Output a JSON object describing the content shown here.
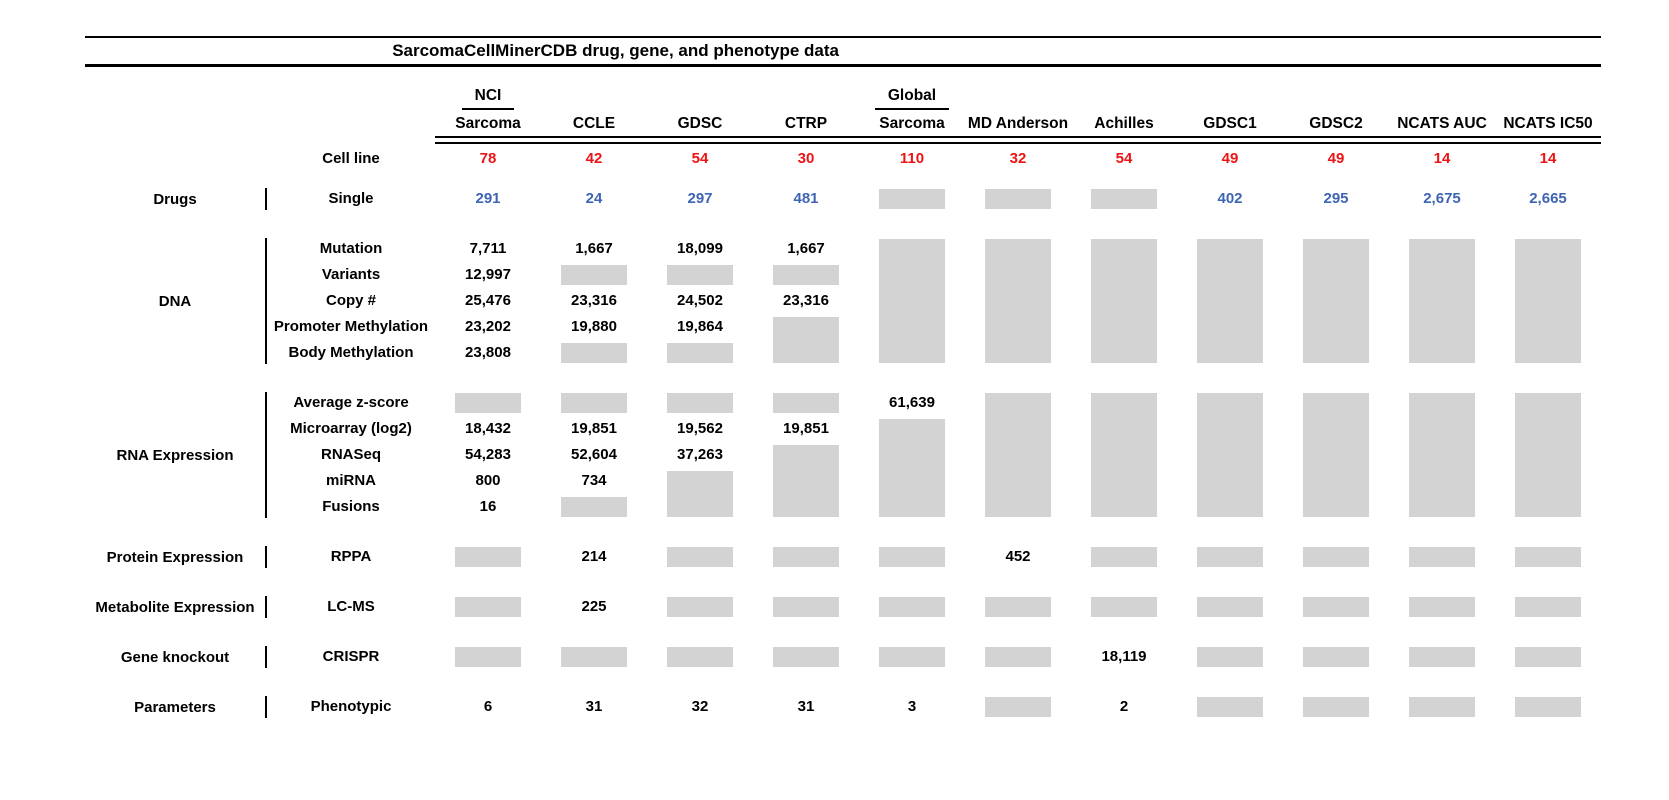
{
  "colors": {
    "count_red": "#EC1414",
    "drug_blue": "#3E64B5",
    "no_data_gray": "#D3D3D3",
    "rule_black": "#000000"
  },
  "chart_data": {
    "type": "table",
    "title": "SarcomaCellMinerCDB drug, gene, and phenotype data",
    "columns": [
      {
        "top": "NCI",
        "label": "Sarcoma"
      },
      {
        "top": "",
        "label": "CCLE"
      },
      {
        "top": "",
        "label": "GDSC"
      },
      {
        "top": "",
        "label": "CTRP"
      },
      {
        "top": "Global",
        "label": "Sarcoma"
      },
      {
        "top": "",
        "label": "MD Anderson"
      },
      {
        "top": "",
        "label": "Achilles"
      },
      {
        "top": "",
        "label": "GDSC1"
      },
      {
        "top": "",
        "label": "GDSC2"
      },
      {
        "top": "",
        "label": "NCATS AUC"
      },
      {
        "top": "",
        "label": "NCATS IC50"
      }
    ],
    "cell_line": {
      "label": "Cell line",
      "values": [
        "78",
        "42",
        "54",
        "30",
        "110",
        "32",
        "54",
        "49",
        "49",
        "14",
        "14"
      ]
    },
    "sections": [
      {
        "group": "Drugs",
        "rows": [
          {
            "label": "Single",
            "value_color": "blue",
            "values": [
              "291",
              "24",
              "297",
              "481",
              null,
              null,
              null,
              "402",
              "295",
              "2,675",
              "2,665"
            ]
          }
        ]
      },
      {
        "group": "DNA",
        "rows": [
          {
            "label": "Mutation",
            "values": [
              "7,711",
              "1,667",
              "18,099",
              "1,667",
              null,
              null,
              null,
              null,
              null,
              null,
              null
            ]
          },
          {
            "label": "Variants",
            "values": [
              "12,997",
              null,
              null,
              null,
              null,
              null,
              null,
              null,
              null,
              null,
              null
            ]
          },
          {
            "label": "Copy #",
            "values": [
              "25,476",
              "23,316",
              "24,502",
              "23,316",
              null,
              null,
              null,
              null,
              null,
              null,
              null
            ]
          },
          {
            "label": "Promoter Methylation",
            "values": [
              "23,202",
              "19,880",
              "19,864",
              null,
              null,
              null,
              null,
              null,
              null,
              null,
              null
            ]
          },
          {
            "label": "Body Methylation",
            "values": [
              "23,808",
              null,
              null,
              null,
              null,
              null,
              null,
              null,
              null,
              null,
              null
            ]
          }
        ]
      },
      {
        "group": "RNA Expression",
        "rows": [
          {
            "label": "Average z-score",
            "values": [
              null,
              null,
              null,
              null,
              "61,639",
              null,
              null,
              null,
              null,
              null,
              null
            ]
          },
          {
            "label": "Microarray (log2)",
            "values": [
              "18,432",
              "19,851",
              "19,562",
              "19,851",
              null,
              null,
              null,
              null,
              null,
              null,
              null
            ]
          },
          {
            "label": "RNASeq",
            "values": [
              "54,283",
              "52,604",
              "37,263",
              null,
              null,
              null,
              null,
              null,
              null,
              null,
              null
            ]
          },
          {
            "label": "miRNA",
            "values": [
              "800",
              "734",
              null,
              null,
              null,
              null,
              null,
              null,
              null,
              null,
              null
            ]
          },
          {
            "label": "Fusions",
            "values": [
              "16",
              null,
              null,
              null,
              null,
              null,
              null,
              null,
              null,
              null,
              null
            ]
          }
        ]
      },
      {
        "group": "Protein Expression",
        "rows": [
          {
            "label": "RPPA",
            "values": [
              null,
              "214",
              null,
              null,
              null,
              "452",
              null,
              null,
              null,
              null,
              null
            ]
          }
        ]
      },
      {
        "group": "Metabolite Expression",
        "rows": [
          {
            "label": "LC-MS",
            "values": [
              null,
              "225",
              null,
              null,
              null,
              null,
              null,
              null,
              null,
              null,
              null
            ]
          }
        ]
      },
      {
        "group": "Gene knockout",
        "rows": [
          {
            "label": "CRISPR",
            "values": [
              null,
              null,
              null,
              null,
              null,
              null,
              "18,119",
              null,
              null,
              null,
              null
            ]
          }
        ]
      },
      {
        "group": "Parameters",
        "rows": [
          {
            "label": "Phenotypic",
            "values": [
              "6",
              "31",
              "32",
              "31",
              "3",
              null,
              "2",
              null,
              null,
              null,
              null
            ]
          }
        ]
      }
    ]
  }
}
